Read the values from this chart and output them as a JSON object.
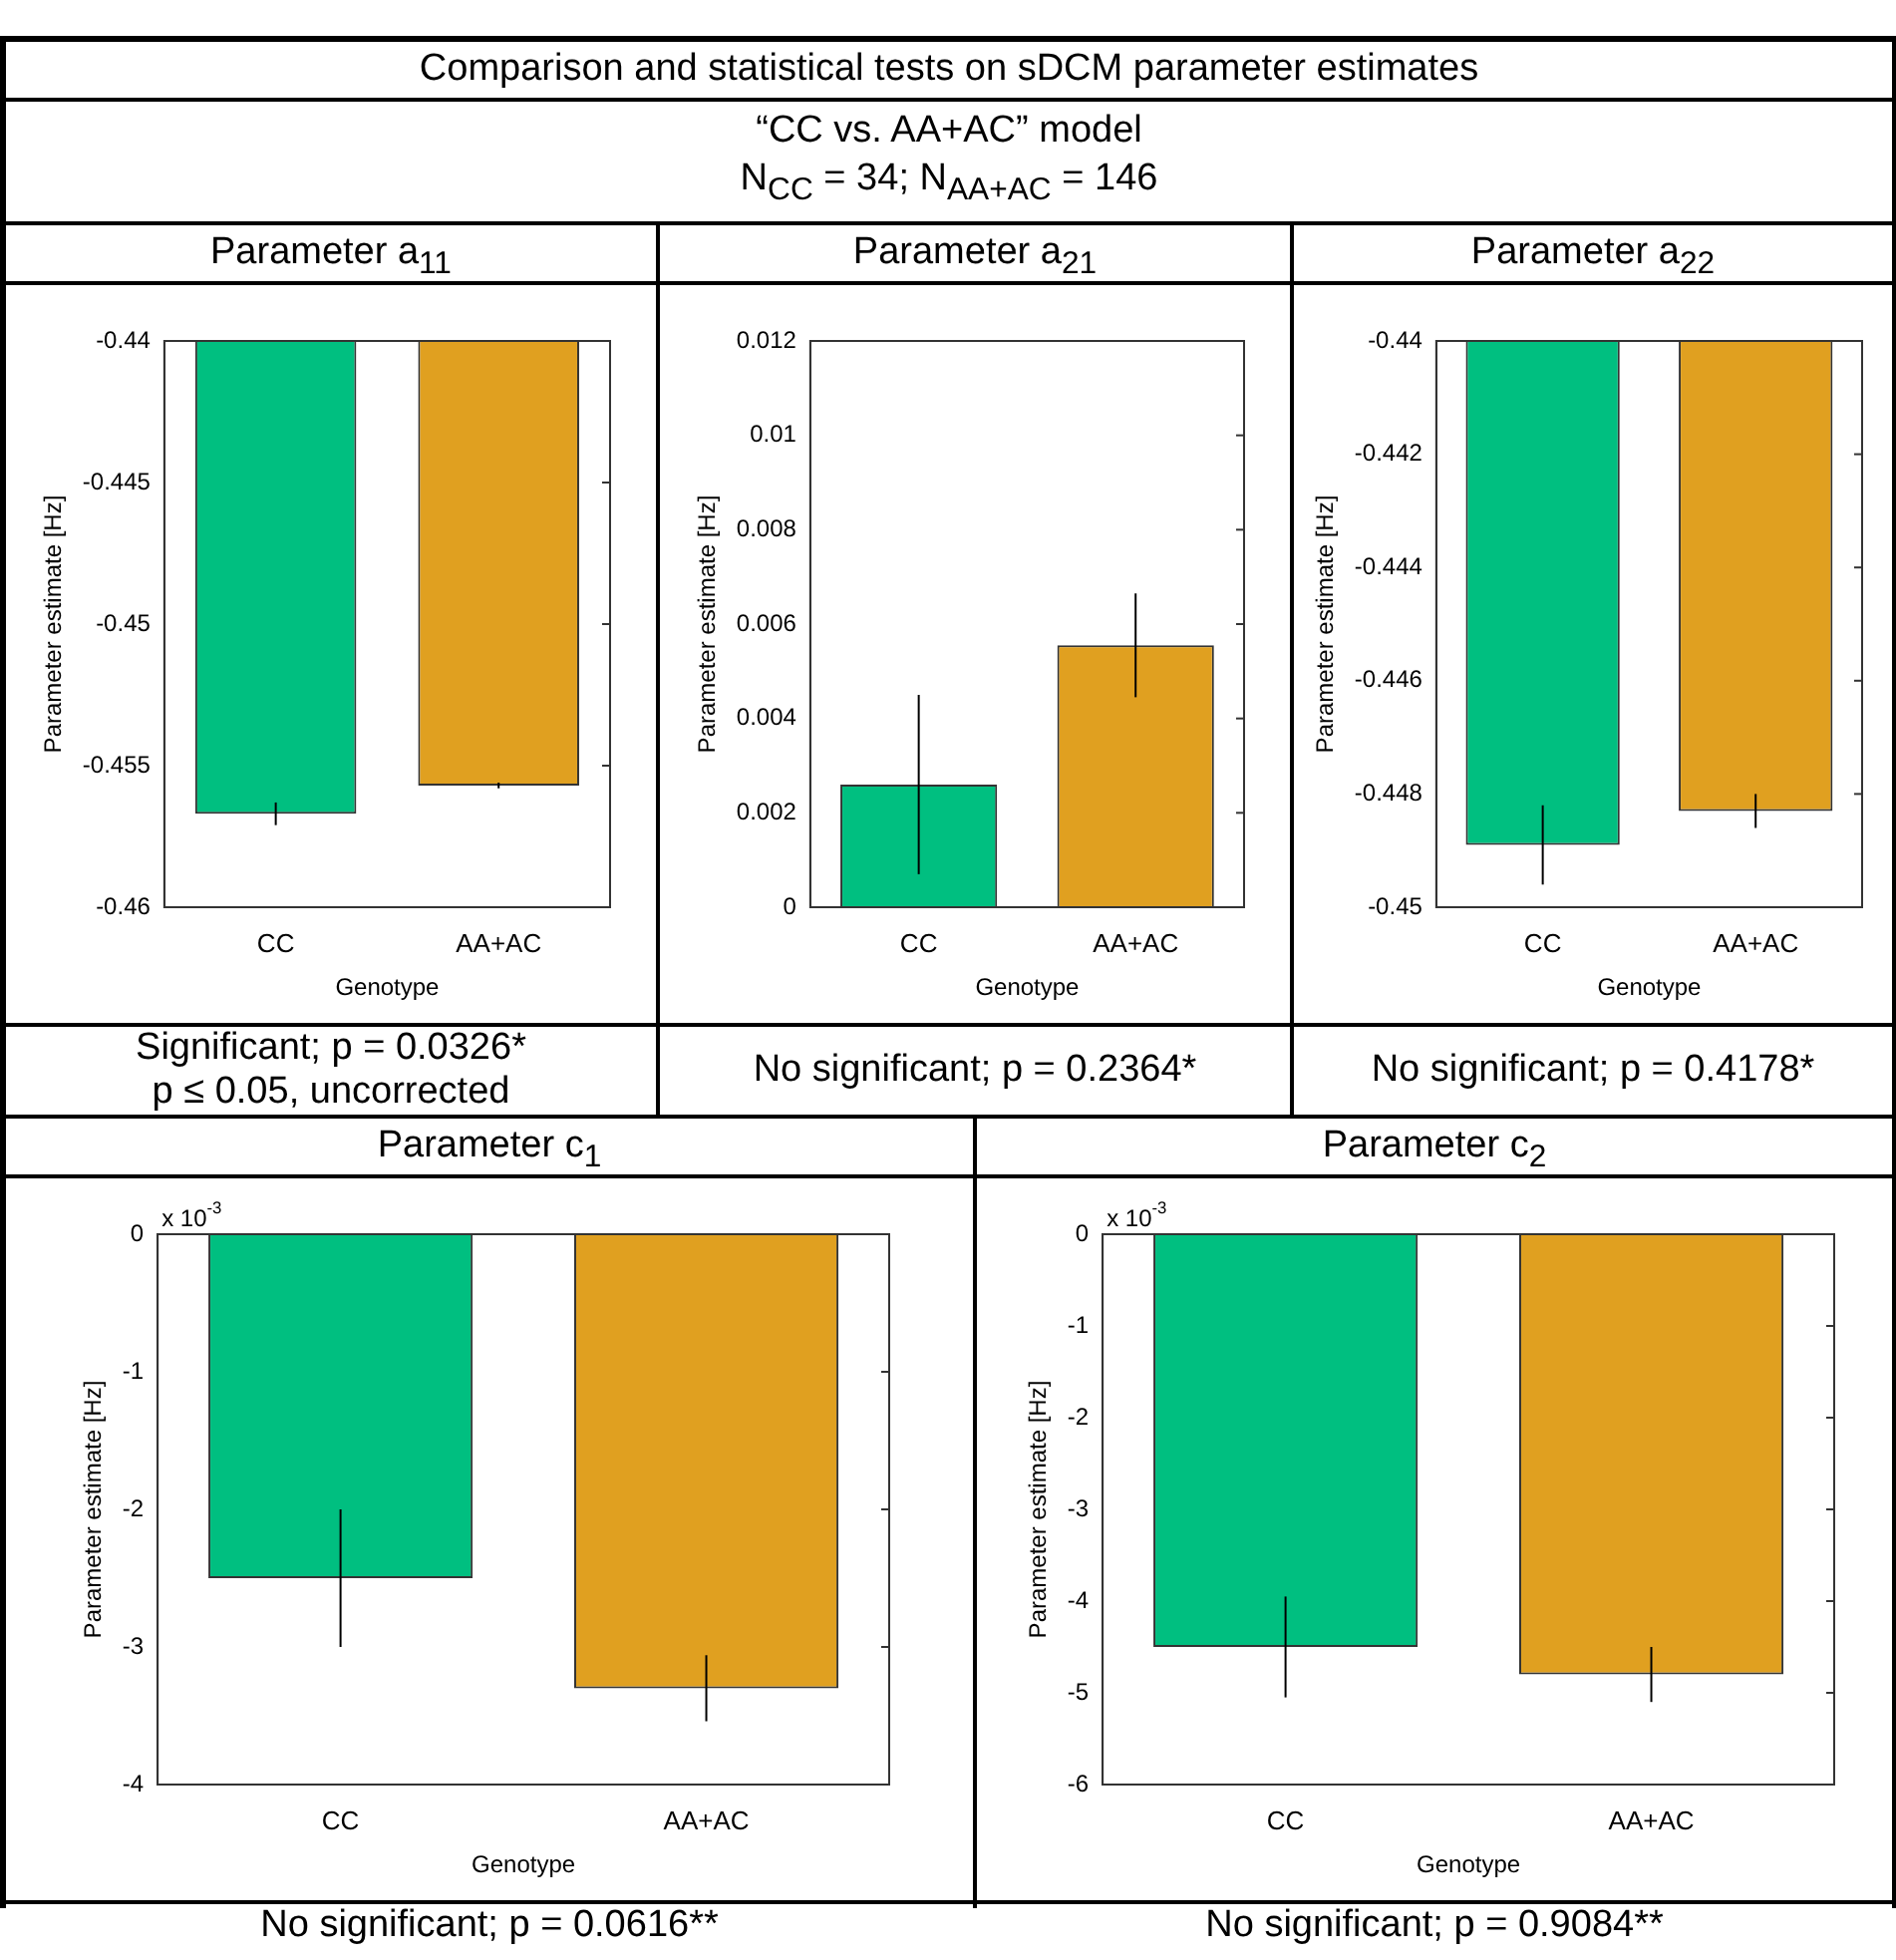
{
  "chart_data": [
    {
      "type": "other",
      "title": "Comparison and statistical tests on sDCM parameter estimates",
      "subtitle": "“CC vs. AA+AC” model",
      "annotations": [
        "N$_{CC}$ = 34; N$_{AA+AC}$ = 146"
      ]
    },
    {
      "type": "bar",
      "title": "Parameter a$_{11}$",
      "xlabel": "Genotype",
      "ylabel": "Parameter estimate [Hz]",
      "categories": [
        "CC",
        "AA+AC"
      ],
      "values": [
        -0.4567,
        -0.4557
      ],
      "colors": [
        "#00bf80",
        "#e0a020"
      ],
      "errors": [
        0.0004,
        0.0001
      ],
      "ylim": [
        -0.46,
        -0.44
      ],
      "yticks": [
        -0.46,
        -0.455,
        -0.45,
        -0.445,
        -0.44
      ],
      "annotations": [
        "Significant; p = 0.0326*",
        "p ≤ 0.05, uncorrected"
      ]
    },
    {
      "type": "bar",
      "title": "Parameter a$_{21}$",
      "xlabel": "Genotype",
      "ylabel": "Parameter estimate [Hz]",
      "categories": [
        "CC",
        "AA+AC"
      ],
      "values": [
        0.0026,
        0.00555
      ],
      "colors": [
        "#00bf80",
        "#e0a020"
      ],
      "errors": [
        0.0019,
        0.0011
      ],
      "ylim": [
        0,
        0.012
      ],
      "yticks": [
        0,
        0.002,
        0.004,
        0.006,
        0.008,
        0.01,
        0.012
      ],
      "annotations": [
        "No significant; p = 0.2364*"
      ]
    },
    {
      "type": "bar",
      "title": "Parameter a$_{22}$",
      "xlabel": "Genotype",
      "ylabel": "Parameter estimate [Hz]",
      "categories": [
        "CC",
        "AA+AC"
      ],
      "values": [
        -0.4489,
        -0.4483
      ],
      "colors": [
        "#00bf80",
        "#e0a020"
      ],
      "errors": [
        0.0007,
        0.0003
      ],
      "ylim": [
        -0.45,
        -0.44
      ],
      "yticks": [
        -0.45,
        -0.448,
        -0.446,
        -0.444,
        -0.442,
        -0.44
      ],
      "annotations": [
        "No significant; p = 0.4178*"
      ]
    },
    {
      "type": "bar",
      "title": "Parameter c$_{1}$",
      "subtitle": "x 10$^{-3}$",
      "xlabel": "Genotype",
      "ylabel": "Parameter estimate [Hz]",
      "categories": [
        "CC",
        "AA+AC"
      ],
      "values": [
        -2.5,
        -3.3
      ],
      "colors": [
        "#00bf80",
        "#e0a020"
      ],
      "errors": [
        0.5,
        0.24
      ],
      "ylim": [
        -4,
        0
      ],
      "yticks": [
        -4,
        -3,
        -2,
        -1,
        0
      ],
      "annotations": [
        "No significant; p = 0.0616**"
      ]
    },
    {
      "type": "bar",
      "title": "Parameter c$_{2}$",
      "subtitle": "x 10$^{-3}$",
      "xlabel": "Genotype",
      "ylabel": "Parameter estimate [Hz]",
      "categories": [
        "CC",
        "AA+AC"
      ],
      "values": [
        -4.5,
        -4.8
      ],
      "colors": [
        "#00bf80",
        "#e0a020"
      ],
      "errors": [
        0.55,
        0.3
      ],
      "ylim": [
        -6,
        0
      ],
      "yticks": [
        -6,
        -5,
        -4,
        -3,
        -2,
        -1,
        0
      ],
      "annotations": [
        "No significant; p = 0.9084**"
      ]
    }
  ]
}
